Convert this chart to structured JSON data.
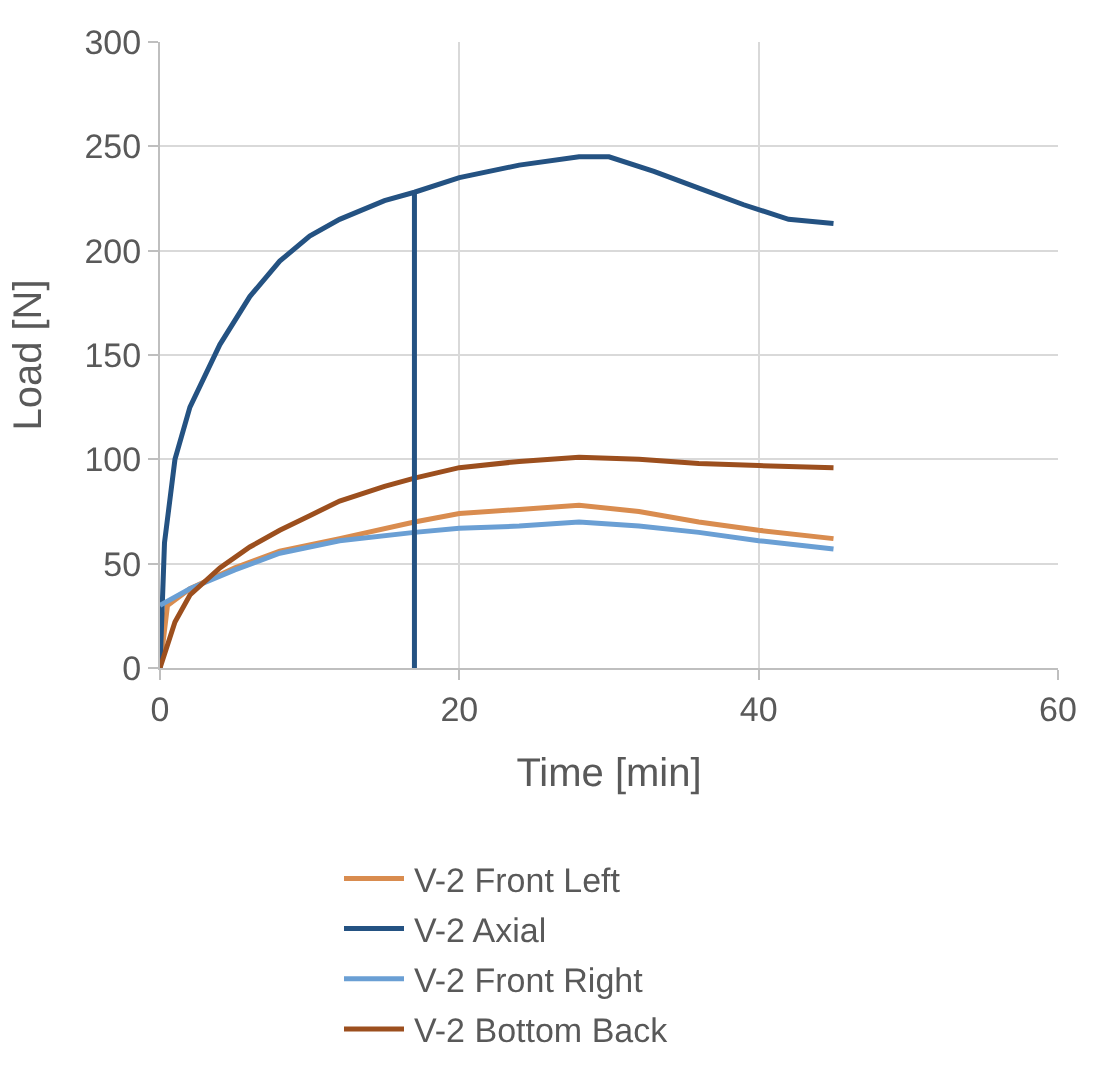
{
  "chart_data": {
    "type": "line",
    "xlabel": "Time [min]",
    "ylabel": "Load [N]",
    "xlim": [
      0,
      60
    ],
    "xticks": [
      0,
      20,
      40,
      60
    ],
    "ylim": [
      0,
      300
    ],
    "yticks": [
      0,
      50,
      100,
      150,
      200,
      250,
      300
    ],
    "grid": true,
    "legend": "bottom",
    "marker": "none",
    "line_style": "solid",
    "series": [
      {
        "name": "V-2 Front Left",
        "color": "#d98c4f",
        "x": [
          0,
          0.5,
          2,
          5,
          8,
          12,
          17,
          20,
          24,
          28,
          32,
          36,
          40,
          45
        ],
        "values": [
          0,
          30,
          38,
          48,
          56,
          62,
          70,
          74,
          76,
          78,
          75,
          70,
          66,
          62
        ]
      },
      {
        "name": "V-2 Axial",
        "color": "#245282",
        "x": [
          0,
          0.3,
          1,
          2,
          4,
          6,
          8,
          10,
          12,
          15,
          17,
          20,
          24,
          28,
          30,
          33,
          36,
          39,
          42,
          45
        ],
        "values": [
          0,
          60,
          100,
          125,
          155,
          178,
          195,
          207,
          215,
          224,
          228,
          235,
          241,
          245,
          245,
          238,
          230,
          222,
          215,
          213
        ]
      },
      {
        "name": "V-2 Front Right",
        "color": "#6a9fd4",
        "x": [
          0,
          2,
          5,
          8,
          12,
          17,
          20,
          24,
          28,
          32,
          36,
          40,
          45
        ],
        "values": [
          30,
          38,
          47,
          55,
          61,
          65,
          67,
          68,
          70,
          68,
          65,
          61,
          57
        ]
      },
      {
        "name": "V-2 Bottom Back",
        "color": "#9c4f1e",
        "x": [
          0,
          1,
          2,
          4,
          6,
          8,
          10,
          12,
          15,
          17,
          20,
          24,
          28,
          32,
          36,
          40,
          45
        ],
        "values": [
          0,
          22,
          35,
          48,
          58,
          66,
          73,
          80,
          87,
          91,
          96,
          99,
          101,
          100,
          98,
          97,
          96
        ]
      },
      {
        "color": "#245282",
        "x": [
          17,
          17
        ],
        "values": [
          0,
          228
        ]
      }
    ]
  }
}
